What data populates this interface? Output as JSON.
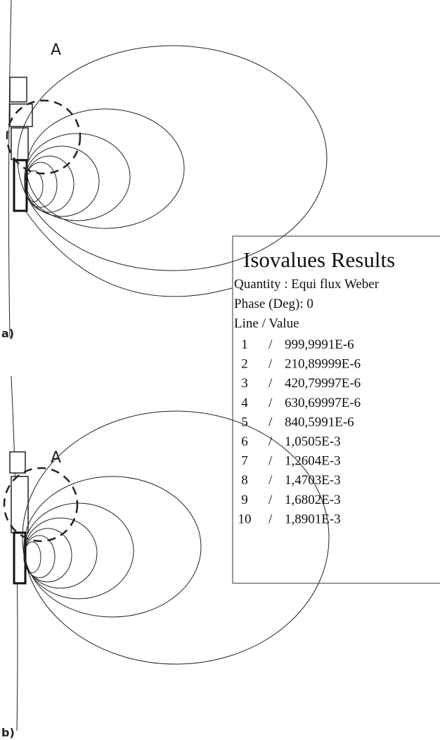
{
  "panel_a": {
    "label": "a)",
    "marker": "A"
  },
  "panel_b": {
    "label": "b)",
    "marker": "A"
  },
  "legend": {
    "title": "Isovalues Results",
    "quantity": "Quantity : Equi flux Weber",
    "phase": "Phase (Deg): 0",
    "header": "Line / Value",
    "rows": [
      [
        1,
        "999,9991E-6"
      ],
      [
        2,
        "210,89999E-6"
      ],
      [
        3,
        "420,79997E-6"
      ],
      [
        4,
        "630,69997E-6"
      ],
      [
        5,
        "840,5991E-6"
      ],
      [
        6,
        "1,0505E-3"
      ],
      [
        7,
        "1,2604E-3"
      ],
      [
        8,
        "1,4703E-3"
      ],
      [
        9,
        "1,6802E-3"
      ],
      [
        10,
        "1,8901E-3"
      ]
    ]
  }
}
